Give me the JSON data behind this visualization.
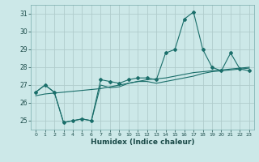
{
  "title": "",
  "xlabel": "Humidex (Indice chaleur)",
  "bg_color": "#cce8e8",
  "grid_color": "#b0cccc",
  "line_color": "#1a6e6a",
  "xlim": [
    -0.5,
    23.5
  ],
  "ylim": [
    24.5,
    31.5
  ],
  "yticks": [
    25,
    26,
    27,
    28,
    29,
    30,
    31
  ],
  "xticks": [
    0,
    1,
    2,
    3,
    4,
    5,
    6,
    7,
    8,
    9,
    10,
    11,
    12,
    13,
    14,
    15,
    16,
    17,
    18,
    19,
    20,
    21,
    22,
    23
  ],
  "series1_x": [
    0,
    1,
    2,
    3,
    4,
    5,
    6,
    7,
    8,
    9,
    10,
    11,
    12,
    13,
    14,
    15,
    16,
    17,
    18,
    19,
    20,
    21,
    22,
    23
  ],
  "series1_y": [
    26.6,
    27.0,
    26.6,
    24.9,
    25.0,
    25.1,
    25.0,
    27.3,
    27.2,
    27.1,
    27.3,
    27.4,
    27.4,
    27.3,
    28.8,
    29.0,
    30.7,
    31.1,
    29.0,
    28.0,
    27.8,
    28.8,
    27.9,
    27.8
  ],
  "series2_x": [
    0,
    1,
    2,
    3,
    4,
    5,
    6,
    7,
    8,
    9,
    10,
    11,
    12,
    13,
    14,
    15,
    16,
    17,
    18,
    19,
    20,
    21,
    22,
    23
  ],
  "series2_y": [
    26.6,
    27.0,
    26.6,
    24.9,
    25.0,
    25.1,
    25.0,
    27.0,
    26.85,
    26.9,
    27.1,
    27.2,
    27.2,
    27.1,
    27.2,
    27.3,
    27.4,
    27.5,
    27.65,
    27.75,
    27.8,
    27.85,
    27.9,
    27.95
  ],
  "series3_x": [
    0,
    1,
    2,
    3,
    4,
    5,
    6,
    7,
    8,
    9,
    10,
    11,
    12,
    13,
    14,
    15,
    16,
    17,
    18,
    19,
    20,
    21,
    22,
    23
  ],
  "series3_y": [
    26.4,
    26.5,
    26.55,
    26.6,
    26.65,
    26.7,
    26.75,
    26.8,
    26.9,
    27.0,
    27.1,
    27.2,
    27.3,
    27.35,
    27.4,
    27.5,
    27.6,
    27.7,
    27.75,
    27.8,
    27.85,
    27.9,
    27.95,
    28.0
  ]
}
